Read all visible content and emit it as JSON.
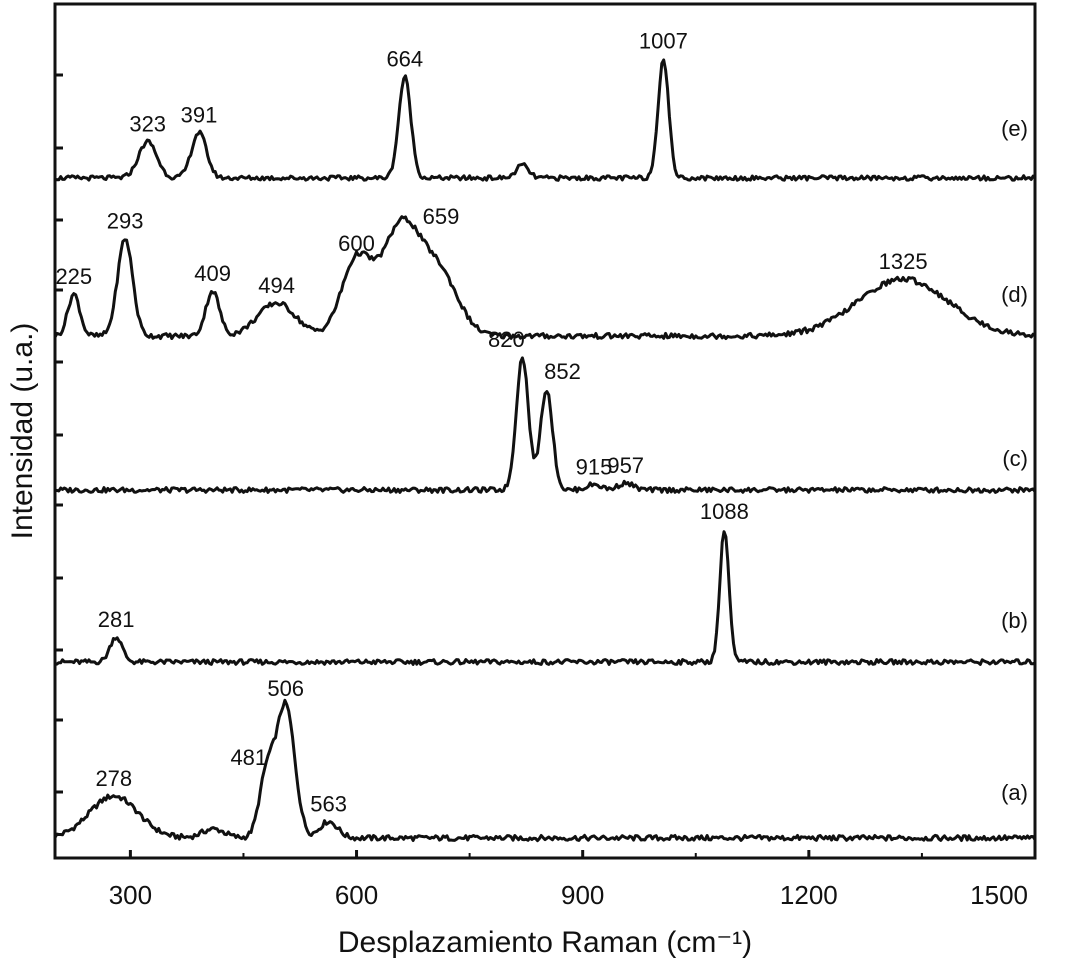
{
  "chart_data": {
    "type": "line",
    "title": "",
    "xlabel": "Desplazamiento Raman (cm⁻¹)",
    "ylabel": "Intensidad (u.a.)",
    "xlim": [
      200,
      1500
    ],
    "ylim": [
      0,
      5
    ],
    "x_ticks": [
      300,
      600,
      900,
      1200,
      1500
    ],
    "x_tick_labels": [
      "300",
      "600",
      "900",
      "1200",
      "1500"
    ],
    "grid": false,
    "line_color": "#111111",
    "series": [
      {
        "name": "(a)",
        "peaks": [
          {
            "x": 278,
            "label": "278",
            "height": 0.28,
            "width": 32
          },
          {
            "x": 481,
            "label": "481",
            "height": 0.42,
            "width": 10
          },
          {
            "x": 506,
            "label": "506",
            "height": 0.88,
            "width": 12
          },
          {
            "x": 563,
            "label": "563",
            "height": 0.11,
            "width": 12
          },
          {
            "x": 410,
            "label": "",
            "height": 0.06,
            "width": 15
          }
        ]
      },
      {
        "name": "(b)",
        "peaks": [
          {
            "x": 281,
            "label": "281",
            "height": 0.18,
            "width": 8
          },
          {
            "x": 1088,
            "label": "1088",
            "height": 0.95,
            "width": 6
          }
        ]
      },
      {
        "name": "(c)",
        "peaks": [
          {
            "x": 820,
            "label": "820",
            "height": 0.95,
            "width": 8
          },
          {
            "x": 852,
            "label": "852",
            "height": 0.72,
            "width": 8
          },
          {
            "x": 915,
            "label": "915",
            "height": 0.04,
            "width": 10
          },
          {
            "x": 957,
            "label": "957",
            "height": 0.05,
            "width": 10
          }
        ]
      },
      {
        "name": "(d)",
        "peaks": [
          {
            "x": 225,
            "label": "225",
            "height": 0.28,
            "width": 8
          },
          {
            "x": 293,
            "label": "293",
            "height": 0.65,
            "width": 10
          },
          {
            "x": 409,
            "label": "409",
            "height": 0.3,
            "width": 9
          },
          {
            "x": 494,
            "label": "494",
            "height": 0.22,
            "width": 25
          },
          {
            "x": 600,
            "label": "600",
            "height": 0.5,
            "width": 20
          },
          {
            "x": 659,
            "label": "659",
            "height": 0.72,
            "width": 25
          },
          {
            "x": 710,
            "label": "",
            "height": 0.4,
            "width": 25
          },
          {
            "x": 1325,
            "label": "1325",
            "height": 0.38,
            "width": 60
          }
        ]
      },
      {
        "name": "(e)",
        "peaks": [
          {
            "x": 323,
            "label": "323",
            "height": 0.28,
            "width": 12
          },
          {
            "x": 391,
            "label": "391",
            "height": 0.35,
            "width": 10
          },
          {
            "x": 664,
            "label": "664",
            "height": 0.78,
            "width": 8
          },
          {
            "x": 820,
            "label": "",
            "height": 0.1,
            "width": 8
          },
          {
            "x": 1007,
            "label": "1007",
            "height": 0.92,
            "width": 7
          }
        ]
      }
    ]
  }
}
